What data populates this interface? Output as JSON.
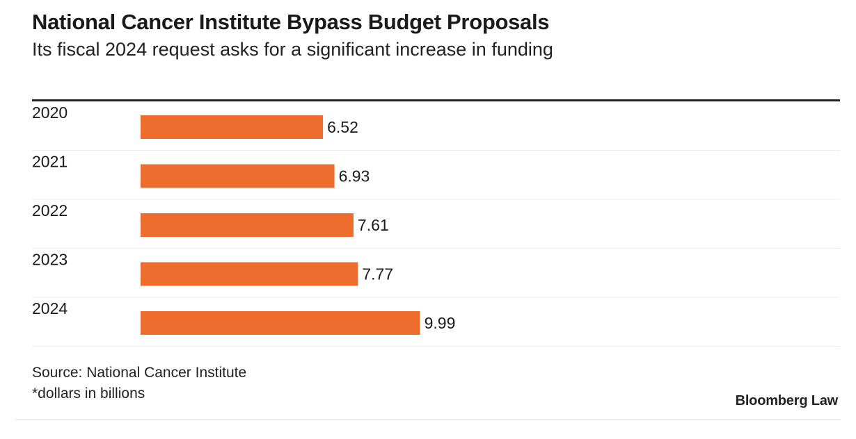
{
  "chart_data": {
    "type": "bar",
    "orientation": "horizontal",
    "title": "National Cancer Institute Bypass Budget Proposals",
    "subtitle": "Its fiscal 2024 request asks for a significant increase in funding",
    "categories": [
      "2020",
      "2021",
      "2022",
      "2023",
      "2024"
    ],
    "values": [
      6.52,
      6.93,
      7.61,
      7.77,
      9.99
    ],
    "value_labels": [
      "6.52",
      "6.93",
      "7.61",
      "7.77",
      "9.99"
    ],
    "bar_color": "#ee6c2d",
    "xlim": [
      0,
      25
    ],
    "grid": false,
    "legend": "none"
  },
  "footer": {
    "source": "Source: National Cancer Institute",
    "note": "*dollars in billions",
    "brand": "Bloomberg Law"
  }
}
